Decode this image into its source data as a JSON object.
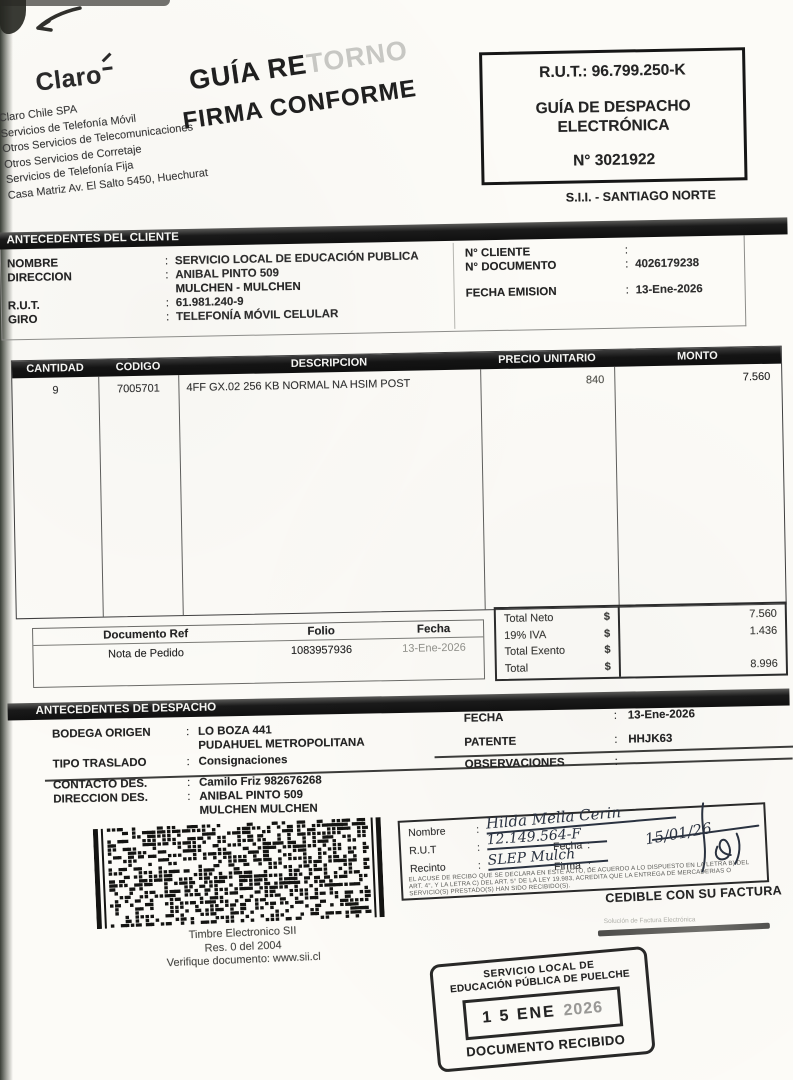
{
  "ui": {
    "colon": ":"
  },
  "header": {
    "brand": "Claro",
    "company_lines": [
      "Claro Chile SPA",
      "Servicios de Telefonía Móvil",
      "Otros Servicios de Telecomunicaciones",
      "Otros Servicios de Corretaje",
      "Servicios de Telefonía Fija",
      "Casa Matriz Av. El Salto 5450, Huechurat"
    ],
    "stamp_line1": "GUÍA RE",
    "stamp_line1_faded": "TORNO",
    "stamp_line2": "FIRMA CONFORME",
    "rut_box": {
      "rut": "R.U.T.: 96.799.250-K",
      "doc_line1": "GUÍA DE DESPACHO",
      "doc_line2": "ELECTRÓNICA",
      "number": "N° 3021922"
    },
    "sii_office": "S.I.I. - SANTIAGO NORTE"
  },
  "client": {
    "section_title": "ANTECEDENTES DEL CLIENTE",
    "nombre_label": "NOMBRE",
    "nombre_value": "SERVICIO LOCAL DE EDUCACIÓN PUBLICA",
    "direccion_label": "DIRECCION",
    "direccion_value1": "ANIBAL PINTO 509",
    "direccion_value2": "MULCHEN - MULCHEN",
    "rut_label": "R.U.T.",
    "rut_value": "61.981.240-9",
    "giro_label": "GIRO",
    "giro_value": "TELEFONÍA MÓVIL CELULAR",
    "n_cliente_label": "N° CLIENTE",
    "n_cliente_value": "",
    "n_documento_label": "N° DOCUMENTO",
    "n_documento_value": "4026179238",
    "fecha_emision_label": "FECHA EMISION",
    "fecha_emision_value": "13-Ene-2026"
  },
  "items": {
    "headers": [
      "CANTIDAD",
      "CODIGO",
      "DESCRIPCION",
      "PRECIO UNITARIO",
      "MONTO"
    ],
    "row": {
      "cantidad": "9",
      "codigo": "7005701",
      "descripcion": "4FF GX.02 256 KB NORMAL NA HSIM POST",
      "precio_unitario": "840",
      "monto": "7.560"
    }
  },
  "ref_table": {
    "headers": [
      "Documento Ref",
      "Folio",
      "Fecha"
    ],
    "row": {
      "documento": "Nota de Pedido",
      "folio": "1083957936",
      "fecha": "13-Ene-2026"
    }
  },
  "totals": {
    "currency": "$",
    "neto_label": "Total Neto",
    "neto_value": "7.560",
    "iva_label": "19% IVA",
    "iva_value": "1.436",
    "exento_label": "Total Exento",
    "exento_value": "",
    "total_label": "Total",
    "total_value": "8.996"
  },
  "dispatch": {
    "section_title": "ANTECEDENTES DE DESPACHO",
    "bodega_label": "BODEGA ORIGEN",
    "bodega_value1": "LO BOZA 441",
    "bodega_value2": "PUDAHUEL  METROPOLITANA",
    "tipo_label": "TIPO TRASLADO",
    "tipo_value": "Consignaciones",
    "contacto_label": "CONTACTO DES.",
    "contacto_value": "Camilo Friz 982676268",
    "direccion_label": "DIRECCION DES.",
    "direccion_value1": "ANIBAL PINTO 509",
    "direccion_value2": "MULCHEN  MULCHEN",
    "fecha_label": "FECHA",
    "fecha_value": "13-Ene-2026",
    "patente_label": "PATENTE",
    "patente_value": "HHJK63",
    "observaciones_label": "OBSERVACIONES",
    "observaciones_value": ""
  },
  "timbre": {
    "caption_line1": "Timbre Electronico SII",
    "caption_line2": "Res. 0 del 2004",
    "caption_line3": "Verifique documento: www.sii.cl"
  },
  "signature": {
    "nombre_label": "Nombre",
    "nombre_value": "Hilda Mella Cerin",
    "rut_label": "R.U.T",
    "rut_value": "12.149.564-F",
    "recinto_label": "Recinto",
    "recinto_value": "SLEP Mulch",
    "fecha_label": "Fecha",
    "fecha_value": "15/01/26",
    "firma_label": "Firma",
    "legal_text": "EL ACUSE DE RECIBO QUE SE DECLARA EN ESTE ACTO, DE ACUERDO A LO DISPUESTO EN LA LETRA B) DEL ART. 4°, Y LA LETRA C) DEL ART. 5° DE LA LEY 19.983, ACREDITA QUE LA ENTREGA DE MERCADERIAS O SERVICIO(S) PRESTADO(S) HAN SIDO RECIBIDO(S).",
    "cedible": "CEDIBLE CON SU FACTURA"
  },
  "footer": {
    "faint_text": "Solución de Factura Electrónica"
  },
  "received_stamp": {
    "org_line1": "SERVICIO LOCAL DE",
    "org_line2": "EDUCACIÓN PÚBLICA DE PUELCHE",
    "date_main": "1 5 ENE",
    "date_year": "2026",
    "status": "DOCUMENTO RECIBIDO"
  }
}
